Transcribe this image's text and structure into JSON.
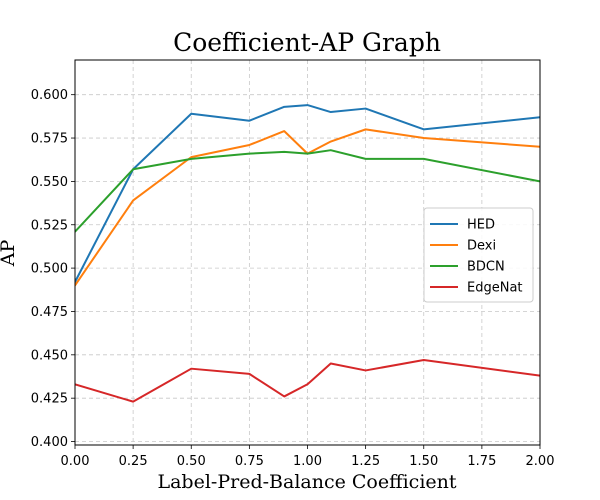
{
  "chart_data": {
    "type": "line",
    "title": "Coefficient-AP Graph",
    "xlabel": "Label-Pred-Balance Coefficient",
    "ylabel": "AP",
    "xlim": [
      0.0,
      2.0
    ],
    "ylim": [
      0.398,
      0.62
    ],
    "grid": true,
    "legend_position": "center-right",
    "x_ticks": [
      0.0,
      0.25,
      0.5,
      0.75,
      1.0,
      1.25,
      1.5,
      1.75,
      2.0
    ],
    "x_tick_labels": [
      "0.00",
      "0.25",
      "0.50",
      "0.75",
      "1.00",
      "1.25",
      "1.50",
      "1.75",
      "2.00"
    ],
    "y_ticks": [
      0.4,
      0.425,
      0.45,
      0.475,
      0.5,
      0.525,
      0.55,
      0.575,
      0.6
    ],
    "y_tick_labels": [
      "0.400",
      "0.425",
      "0.450",
      "0.475",
      "0.500",
      "0.525",
      "0.550",
      "0.575",
      "0.600"
    ],
    "series": [
      {
        "name": "HED",
        "color": "#1f77b4",
        "x": [
          0.0,
          0.25,
          0.5,
          0.75,
          0.9,
          1.0,
          1.1,
          1.25,
          1.5,
          2.0
        ],
        "y": [
          0.492,
          0.557,
          0.589,
          0.585,
          0.593,
          0.594,
          0.59,
          0.592,
          0.58,
          0.587
        ]
      },
      {
        "name": "Dexi",
        "color": "#ff7f0e",
        "x": [
          0.0,
          0.25,
          0.5,
          0.75,
          0.9,
          1.0,
          1.1,
          1.25,
          1.5,
          2.0
        ],
        "y": [
          0.49,
          0.539,
          0.564,
          0.571,
          0.579,
          0.566,
          0.573,
          0.58,
          0.575,
          0.57
        ]
      },
      {
        "name": "BDCN",
        "color": "#2ca02c",
        "x": [
          0.0,
          0.25,
          0.5,
          0.75,
          0.9,
          1.0,
          1.1,
          1.25,
          1.5,
          2.0
        ],
        "y": [
          0.521,
          0.557,
          0.563,
          0.566,
          0.567,
          0.566,
          0.568,
          0.563,
          0.563,
          0.55
        ]
      },
      {
        "name": "EdgeNat",
        "color": "#d62728",
        "x": [
          0.0,
          0.25,
          0.5,
          0.75,
          0.9,
          1.0,
          1.1,
          1.25,
          1.5,
          2.0
        ],
        "y": [
          0.433,
          0.423,
          0.442,
          0.439,
          0.426,
          0.433,
          0.445,
          0.441,
          0.447,
          0.438
        ]
      }
    ]
  }
}
